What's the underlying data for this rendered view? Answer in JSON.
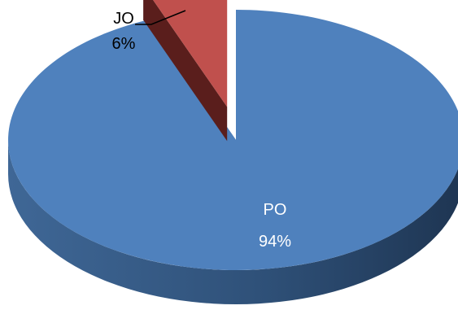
{
  "chart_data": {
    "type": "pie",
    "style": "3d-exploded",
    "slices": [
      {
        "name": "PO",
        "value": 94,
        "label": "94%",
        "color": "#4F81BD"
      },
      {
        "name": "JO",
        "value": 6,
        "label": "6%",
        "color": "#C0504D"
      }
    ]
  }
}
